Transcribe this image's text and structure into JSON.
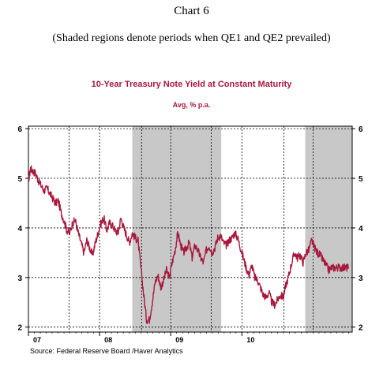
{
  "header": {
    "title": "Chart 6",
    "subtitle": "(Shaded regions denote periods when QE1 and QE2 prevailed)"
  },
  "source": "Source:  Federal Reserve Board /Haver Analytics",
  "colors": {
    "line": "#a8183c",
    "shade": "#c8c8c8",
    "title": "#a8183c"
  },
  "chart_data": {
    "type": "line",
    "title": "10-Year Treasury Note Yield at Constant Maturity",
    "subtitle": "Avg, % p.a.",
    "xlabel": "",
    "ylabel": "",
    "xlim": [
      2007.0,
      2011.55
    ],
    "ylim": [
      1.9,
      6.05
    ],
    "grid": true,
    "yticks": [
      2,
      3,
      4,
      5,
      6
    ],
    "xticks": [
      {
        "label": "07",
        "x": 2007.0
      },
      {
        "label": "08",
        "x": 2008.0
      },
      {
        "label": "09",
        "x": 2009.0
      },
      {
        "label": "10",
        "x": 2010.0
      }
    ],
    "x_gridlines": [
      2007.57,
      2008.0,
      2008.59,
      2009.0,
      2009.57,
      2010.0,
      2010.59,
      2011.0
    ],
    "shaded_regions": [
      {
        "name": "QE1",
        "x_start": 2008.46,
        "x_end": 2009.71
      },
      {
        "name": "QE2",
        "x_start": 2010.89,
        "x_end": 2011.55
      }
    ],
    "series": [
      {
        "name": "10-Year Treasury Note Yield",
        "x": [
          2007.0,
          2007.03,
          2007.06,
          2007.1,
          2007.14,
          2007.18,
          2007.22,
          2007.26,
          2007.3,
          2007.34,
          2007.38,
          2007.42,
          2007.46,
          2007.5,
          2007.54,
          2007.58,
          2007.62,
          2007.66,
          2007.7,
          2007.74,
          2007.78,
          2007.82,
          2007.86,
          2007.9,
          2007.94,
          2007.98,
          2008.02,
          2008.06,
          2008.1,
          2008.14,
          2008.18,
          2008.22,
          2008.26,
          2008.3,
          2008.34,
          2008.38,
          2008.42,
          2008.46,
          2008.5,
          2008.54,
          2008.58,
          2008.62,
          2008.66,
          2008.7,
          2008.74,
          2008.78,
          2008.82,
          2008.86,
          2008.9,
          2008.94,
          2008.98,
          2009.02,
          2009.06,
          2009.1,
          2009.14,
          2009.18,
          2009.22,
          2009.26,
          2009.3,
          2009.34,
          2009.38,
          2009.42,
          2009.46,
          2009.5,
          2009.54,
          2009.58,
          2009.62,
          2009.66,
          2009.7,
          2009.74,
          2009.78,
          2009.82,
          2009.86,
          2009.9,
          2009.94,
          2009.98,
          2010.02,
          2010.06,
          2010.1,
          2010.14,
          2010.18,
          2010.22,
          2010.26,
          2010.3,
          2010.34,
          2010.38,
          2010.42,
          2010.46,
          2010.5,
          2010.54,
          2010.58,
          2010.62,
          2010.66,
          2010.7,
          2010.74,
          2010.78,
          2010.82,
          2010.86,
          2010.9,
          2010.94,
          2010.98,
          2011.02,
          2011.06,
          2011.1,
          2011.14,
          2011.18,
          2011.22,
          2011.26,
          2011.3,
          2011.34,
          2011.38,
          2011.42,
          2011.46,
          2011.5
        ],
        "values": [
          4.95,
          5.2,
          5.15,
          5.1,
          4.95,
          4.85,
          4.75,
          4.8,
          4.7,
          4.6,
          4.5,
          4.55,
          4.3,
          4.15,
          3.95,
          3.9,
          4.1,
          4.15,
          3.9,
          3.7,
          3.5,
          3.75,
          3.6,
          3.45,
          3.7,
          3.9,
          4.1,
          4.2,
          3.95,
          4.1,
          4.05,
          3.95,
          3.9,
          4.2,
          4.0,
          3.85,
          3.7,
          3.9,
          3.8,
          3.75,
          3.2,
          2.65,
          2.15,
          2.15,
          2.5,
          2.9,
          3.05,
          2.8,
          2.95,
          3.15,
          3.0,
          3.3,
          3.55,
          3.9,
          3.65,
          3.5,
          3.6,
          3.7,
          3.4,
          3.65,
          3.55,
          3.4,
          3.3,
          3.55,
          3.65,
          3.5,
          3.6,
          3.8,
          3.85,
          3.7,
          3.65,
          3.75,
          3.8,
          3.9,
          3.8,
          3.6,
          3.4,
          3.2,
          3.05,
          3.25,
          3.0,
          2.95,
          2.8,
          2.65,
          2.6,
          2.7,
          2.5,
          2.45,
          2.55,
          2.65,
          2.6,
          2.85,
          3.05,
          3.3,
          3.5,
          3.4,
          3.45,
          3.3,
          3.5,
          3.55,
          3.75,
          3.6,
          3.5,
          3.45,
          3.35,
          3.25,
          3.15,
          3.2,
          3.2,
          3.2,
          3.2,
          3.2,
          3.2,
          3.2
        ]
      }
    ]
  }
}
